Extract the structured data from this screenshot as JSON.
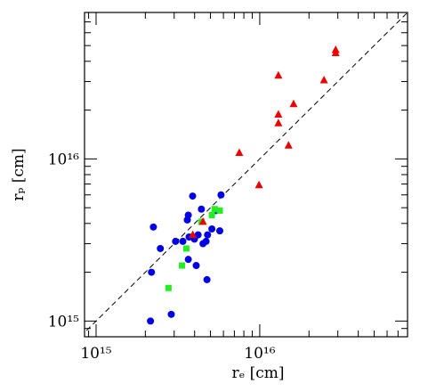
{
  "chart_data": {
    "type": "scatter",
    "x_label": "rₑ [cm]",
    "y_label": "rₚ [cm]",
    "log_x": true,
    "log_y": true,
    "xlim": [
      850000000000000.0,
      8e+16
    ],
    "ylim": [
      800000000000000.0,
      8e+16
    ],
    "xticks": [
      {
        "value": 1000000000000000.0,
        "label": "10¹⁵"
      },
      {
        "value": 1e+16,
        "label": "10¹⁶"
      }
    ],
    "yticks": [
      {
        "value": 1000000000000000.0,
        "label": "10¹⁵"
      },
      {
        "value": 1e+16,
        "label": "10¹⁶"
      }
    ],
    "xminorticks": [
      900000000000000.0,
      2000000000000000.0,
      3000000000000000.0,
      4000000000000000.0,
      5000000000000000.0,
      6000000000000000.0,
      7000000000000000.0,
      8000000000000000.0,
      9000000000000000.0,
      2e+16,
      3e+16,
      4e+16,
      5e+16,
      6e+16,
      7e+16
    ],
    "yminorticks": [
      900000000000000.0,
      2000000000000000.0,
      3000000000000000.0,
      4000000000000000.0,
      5000000000000000.0,
      6000000000000000.0,
      7000000000000000.0,
      8000000000000000.0,
      9000000000000000.0,
      2e+16,
      3e+16,
      4e+16,
      5e+16,
      6e+16,
      7e+16
    ],
    "identity_line": true,
    "series": [
      {
        "color": "#0000e6",
        "marker": "circle",
        "x": [
          2150000000000000.0,
          2880000000000000.0,
          2240000000000000.0,
          2180000000000000.0,
          2470000000000000.0,
          3060000000000000.0,
          3390000000000000.0,
          3610000000000000.0,
          3890000000000000.0,
          3660000000000000.0,
          3700000000000000.0,
          3990000000000000.0,
          4090000000000000.0,
          4200000000000000.0,
          4500000000000000.0,
          4700000000000000.0,
          4760000000000000.0,
          4800000000000000.0,
          4400000000000000.0,
          5700000000000000.0,
          5800000000000000.0,
          5400000000000000.0,
          5100000000000000.0,
          3660000000000000.0
        ],
        "y": [
          1000000000000000.0,
          1100000000000000.0,
          3800000000000000.0,
          2000000000000000.0,
          2800000000000000.0,
          3100000000000000.0,
          3100000000000000.0,
          4200000000000000.0,
          5900000000000000.0,
          4500000000000000.0,
          3300000000000000.0,
          3200000000000000.0,
          2200000000000000.0,
          3400000000000000.0,
          3000000000000000.0,
          3100000000000000.0,
          1800000000000000.0,
          3400000000000000.0,
          4900000000000000.0,
          3600000000000000.0,
          6000000000000000.0,
          4800000000000000.0,
          3700000000000000.0,
          2400000000000000.0
        ]
      },
      {
        "color": "#22ee22",
        "marker": "square",
        "x": [
          2770000000000000.0,
          3350000000000000.0,
          3560000000000000.0,
          5100000000000000.0,
          5700000000000000.0,
          5300000000000000.0,
          4400000000000000.0
        ],
        "y": [
          1600000000000000.0,
          2200000000000000.0,
          2800000000000000.0,
          4500000000000000.0,
          4800000000000000.0,
          4900000000000000.0,
          4100000000000000.0
        ]
      },
      {
        "color": "#ee0000",
        "marker": "triangle",
        "x": [
          4500000000000000.0,
          3900000000000000.0,
          7500000000000000.0,
          9900000000000000.0,
          1.3e+16,
          1.3e+16,
          1.3e+16,
          1.5e+16,
          1.61e+16,
          2.47e+16,
          2.91e+16,
          2.91e+16
        ],
        "y": [
          4100000000000000.0,
          3400000000000000.0,
          1.09e+16,
          6900000000000000.0,
          3.27e+16,
          1.88e+16,
          1.66e+16,
          1.21e+16,
          2.18e+16,
          3.06e+16,
          4.7e+16,
          4.5e+16
        ]
      }
    ]
  }
}
